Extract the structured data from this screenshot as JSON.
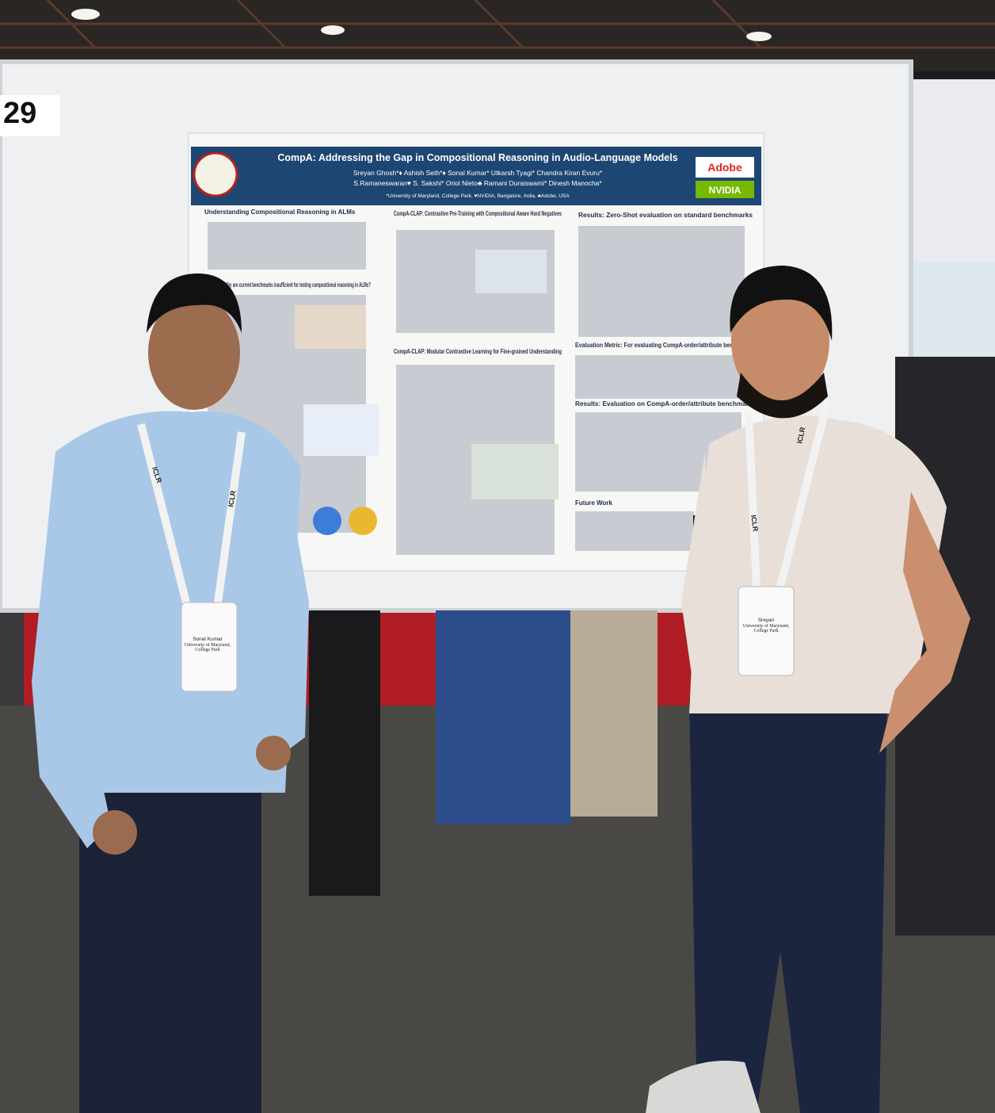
{
  "booth_number": "29",
  "poster": {
    "title": "CompA: Addressing the Gap in Compositional Reasoning in Audio-Language Models",
    "authors_line1": "Sreyan Ghosh*♦   Ashish Seth*♦   Sonal Kumar*   Utkarsh Tyagi*   Chandra Kiran Evuru*",
    "authors_line2": "S.Ramaneswaran♥   S. Sakshi*   Oriol Nieto♣   Ramani Duraiswami*   Dinesh Manocha*",
    "affiliations": "*University of Maryland, College Park, ♥NVIDIA, Bangalore, India, ♣Adobe, USA",
    "logos": [
      "Adobe",
      "NVIDIA"
    ],
    "sections": [
      "Understanding Compositional Reasoning in ALMs",
      "Motivation: Why are current benchmarks insufficient for testing compositional reasoning in ALMs?",
      "CompA-CLAP: Contrastive Pre-Training with Compositional Aware Hard Negatives",
      "CompA-CLAP: Modular Contrastive Learning for Fine-grained Understanding",
      "Results: Zero-Shot evaluation on standard benchmarks",
      "Evaluation Metric: For evaluating CompA-order/attribute benchmarks",
      "Results: Evaluation on CompA-order/attribute benchmarks",
      "Future Work"
    ]
  },
  "lanyard_text": "ICLR",
  "badges": [
    {
      "name": "Sonal Kumar",
      "affiliation": "University of Maryland, College Park"
    },
    {
      "name": "Sreyan",
      "affiliation": "University of Maryland, College Park"
    }
  ]
}
